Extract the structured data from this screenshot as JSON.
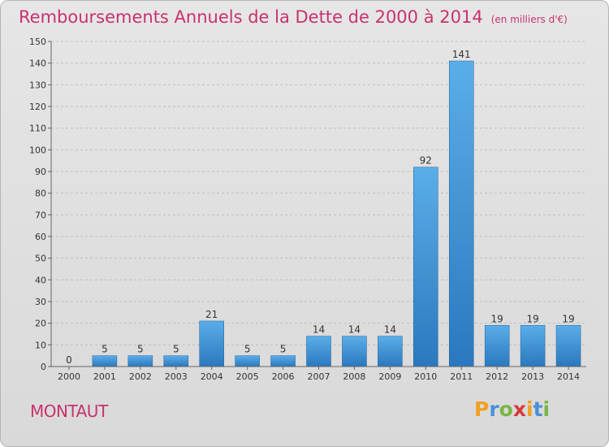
{
  "chart_data": {
    "type": "bar",
    "title": "Remboursements Annuels de la Dette de 2000 à 2014",
    "subtitle": "(en milliers d'€)",
    "categories": [
      "2000",
      "2001",
      "2002",
      "2003",
      "2004",
      "2005",
      "2006",
      "2007",
      "2008",
      "2009",
      "2010",
      "2011",
      "2012",
      "2013",
      "2014"
    ],
    "values": [
      0,
      5,
      5,
      5,
      21,
      5,
      5,
      14,
      14,
      14,
      92,
      141,
      19,
      19,
      19
    ],
    "ylim": [
      0,
      150
    ],
    "yticks": [
      0,
      10,
      20,
      30,
      40,
      50,
      60,
      70,
      80,
      90,
      100,
      110,
      120,
      130,
      140,
      150
    ],
    "grid": "horizontal-dashed",
    "bar_color": "#3d8fd6",
    "title_color": "#c8326e"
  },
  "footer": {
    "commune": "MONTAUT",
    "logo": {
      "letters": [
        "P",
        "r",
        "o",
        "x",
        "i",
        "t",
        "i"
      ],
      "colors": [
        "#f0a020",
        "#4a90d9",
        "#7ab648",
        "#d93a3a",
        "#f0a020",
        "#4a90d9",
        "#7ab648"
      ]
    }
  }
}
